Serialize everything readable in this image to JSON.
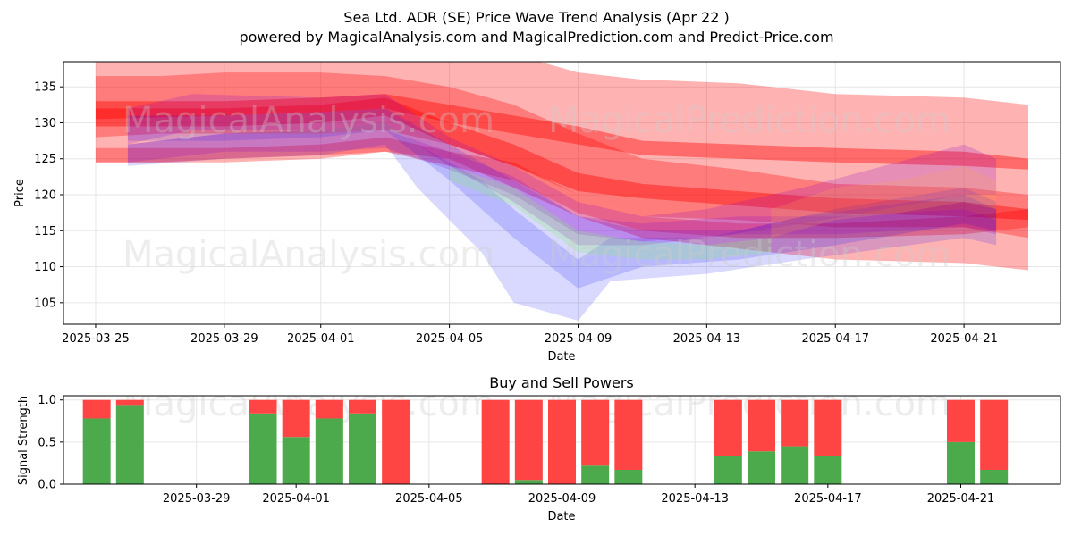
{
  "chart_data": [
    {
      "type": "area",
      "title": "Sea Ltd. ADR (SE) Price Wave Trend Analysis (Apr 22 )",
      "subtitle": "powered by MagicalAnalysis.com and MagicalPrediction.com and Predict-Price.com",
      "xlabel": "Date",
      "ylabel": "Price",
      "x_ticks": [
        "2025-03-25",
        "2025-03-29",
        "2025-04-01",
        "2025-04-05",
        "2025-04-09",
        "2025-04-13",
        "2025-04-17",
        "2025-04-21"
      ],
      "y_ticks": [
        105,
        110,
        115,
        120,
        125,
        130,
        135
      ],
      "xlim": [
        "2025-03-24",
        "2025-04-24"
      ],
      "ylim": [
        102,
        138.5
      ],
      "grid": true,
      "watermarks": [
        "MagicalAnalysis.com",
        "MagicalPrediction.com"
      ],
      "bands": [
        {
          "color": "#ff0000",
          "opacity": 0.3,
          "x": [
            "2025-03-25",
            "2025-03-27",
            "2025-03-29",
            "2025-04-01",
            "2025-04-03",
            "2025-04-05",
            "2025-04-07",
            "2025-04-09",
            "2025-04-11",
            "2025-04-14",
            "2025-04-17",
            "2025-04-21",
            "2025-04-23"
          ],
          "upper": [
            140,
            139.5,
            139.5,
            139.5,
            140,
            140,
            139.5,
            137,
            136,
            135.5,
            134,
            133.5,
            132.5
          ],
          "lower": [
            124.5,
            124.5,
            125,
            125.5,
            126,
            125,
            121,
            117,
            114,
            112.5,
            111,
            110.5,
            109.5
          ]
        },
        {
          "color": "#ff0000",
          "opacity": 0.3,
          "x": [
            "2025-03-25",
            "2025-03-27",
            "2025-03-29",
            "2025-04-01",
            "2025-04-03",
            "2025-04-05",
            "2025-04-07",
            "2025-04-09",
            "2025-04-11",
            "2025-04-14",
            "2025-04-17",
            "2025-04-21",
            "2025-04-23"
          ],
          "upper": [
            136.5,
            136.5,
            137,
            137,
            136.5,
            135,
            132.5,
            128.5,
            125,
            123.5,
            121.5,
            121,
            120
          ],
          "lower": [
            128,
            128.5,
            128.5,
            128.5,
            129,
            127,
            124,
            120,
            117,
            116.5,
            115.5,
            115.5,
            114
          ]
        },
        {
          "color": "#ff0000",
          "opacity": 0.4,
          "x": [
            "2025-03-25",
            "2025-03-29",
            "2025-04-01",
            "2025-04-03",
            "2025-04-05",
            "2025-04-07",
            "2025-04-09",
            "2025-04-11",
            "2025-04-14",
            "2025-04-17",
            "2025-04-21",
            "2025-04-23"
          ],
          "upper": [
            133,
            133,
            133.5,
            134,
            132.5,
            131,
            129.5,
            127.5,
            127,
            126.5,
            126,
            125
          ],
          "lower": [
            130.5,
            131,
            131.5,
            132,
            130,
            128.5,
            127,
            125.5,
            125,
            124.5,
            124,
            123.5
          ]
        },
        {
          "color": "#ff0000",
          "opacity": 0.4,
          "x": [
            "2025-03-25",
            "2025-03-29",
            "2025-04-01",
            "2025-04-03",
            "2025-04-05",
            "2025-04-07",
            "2025-04-09",
            "2025-04-11",
            "2025-04-14",
            "2025-04-17",
            "2025-04-21",
            "2025-04-23"
          ],
          "upper": [
            132,
            132,
            132.5,
            133.5,
            130,
            127,
            123,
            121.5,
            120.5,
            119.5,
            119,
            118
          ],
          "lower": [
            129.5,
            129.5,
            130,
            131,
            127,
            124,
            120.5,
            119.5,
            118.5,
            117.5,
            117,
            116.5
          ]
        },
        {
          "color": "#ff0000",
          "opacity": 0.3,
          "x": [
            "2025-03-25",
            "2025-03-29",
            "2025-04-01",
            "2025-04-03",
            "2025-04-05",
            "2025-04-07",
            "2025-04-09",
            "2025-04-11",
            "2025-04-14",
            "2025-04-17",
            "2025-04-21",
            "2025-04-23"
          ],
          "upper": [
            126.5,
            126.5,
            127,
            128,
            126,
            124.5,
            120,
            117,
            116,
            116,
            117,
            118
          ],
          "lower": [
            124.5,
            124.5,
            125,
            126,
            124,
            122,
            117.5,
            115,
            114,
            114,
            114.5,
            115.5
          ]
        },
        {
          "color": "#0000ff",
          "opacity": 0.15,
          "x": [
            "2025-03-26",
            "2025-03-29",
            "2025-04-01",
            "2025-04-03",
            "2025-04-04",
            "2025-04-06",
            "2025-04-07",
            "2025-04-09",
            "2025-04-10",
            "2025-04-13",
            "2025-04-16",
            "2025-04-21",
            "2025-04-22"
          ],
          "upper": [
            127,
            128.5,
            129,
            130,
            127,
            122,
            118,
            111,
            114,
            114,
            117,
            120,
            118
          ],
          "lower": [
            124,
            125,
            125.5,
            127,
            121,
            112,
            105,
            102.5,
            108,
            109,
            111,
            114,
            113
          ]
        },
        {
          "color": "#0000ff",
          "opacity": 0.15,
          "x": [
            "2025-03-26",
            "2025-03-29",
            "2025-04-01",
            "2025-04-03",
            "2025-04-05",
            "2025-04-07",
            "2025-04-09",
            "2025-04-11",
            "2025-04-14",
            "2025-04-17",
            "2025-04-21",
            "2025-04-22"
          ],
          "upper": [
            131,
            131,
            131.5,
            132,
            127,
            122,
            117,
            115,
            115,
            118,
            121,
            119
          ],
          "lower": [
            127.5,
            127.5,
            128,
            129,
            122,
            114,
            107,
            110,
            111,
            113,
            116,
            115
          ]
        },
        {
          "color": "#8800cc",
          "opacity": 0.2,
          "x": [
            "2025-03-26",
            "2025-03-28",
            "2025-04-01",
            "2025-04-03",
            "2025-04-05",
            "2025-04-07",
            "2025-04-09",
            "2025-04-11",
            "2025-04-13",
            "2025-04-16",
            "2025-04-21",
            "2025-04-22"
          ],
          "upper": [
            132,
            134,
            133.5,
            134,
            128,
            124,
            119,
            117,
            118,
            121,
            127,
            125
          ],
          "lower": [
            127,
            129,
            129,
            130,
            124,
            119,
            113,
            113,
            114,
            116,
            120,
            120
          ]
        },
        {
          "color": "#8800cc",
          "opacity": 0.2,
          "x": [
            "2025-03-26",
            "2025-03-29",
            "2025-04-01",
            "2025-04-03",
            "2025-04-05",
            "2025-04-07",
            "2025-04-09",
            "2025-04-11",
            "2025-04-14",
            "2025-04-17",
            "2025-04-21",
            "2025-04-22"
          ],
          "upper": [
            127,
            128.5,
            128.5,
            129,
            126,
            122.5,
            117,
            116,
            117,
            117,
            118,
            116.5
          ],
          "lower": [
            124.5,
            126,
            126,
            126.5,
            123.5,
            120,
            114.5,
            113.5,
            114.5,
            114.5,
            115.5,
            114.5
          ]
        },
        {
          "color": "#88ee66",
          "opacity": 0.25,
          "x": [
            "2025-04-05",
            "2025-04-07",
            "2025-04-09",
            "2025-04-11",
            "2025-04-13",
            "2025-04-15"
          ],
          "upper": [
            124,
            121,
            115,
            113.5,
            113,
            114
          ],
          "lower": [
            122,
            118.5,
            112,
            111,
            111,
            112
          ]
        },
        {
          "color": "#ffaa44",
          "opacity": 0.2,
          "x": [
            "2025-04-15",
            "2025-04-17",
            "2025-04-19",
            "2025-04-21",
            "2025-04-22"
          ],
          "upper": [
            118,
            121,
            122,
            124,
            122
          ],
          "lower": [
            114,
            116.5,
            117.5,
            119,
            118
          ]
        }
      ]
    },
    {
      "type": "bar",
      "title": "Buy and Sell Powers",
      "xlabel": "Date",
      "ylabel": "Signal Strength",
      "x_ticks": [
        "2025-03-29",
        "2025-04-01",
        "2025-04-05",
        "2025-04-09",
        "2025-04-13",
        "2025-04-17",
        "2025-04-21"
      ],
      "y_ticks": [
        0.0,
        0.5,
        1.0
      ],
      "xlim": [
        "2025-03-25",
        "2025-04-24"
      ],
      "ylim": [
        0,
        1.05
      ],
      "grid": true,
      "colors": {
        "buy": "#4caa4c",
        "sell": "#ff4444"
      },
      "series": [
        {
          "name": "buy",
          "x": [
            "2025-03-26",
            "2025-03-27",
            "2025-03-31",
            "2025-04-01",
            "2025-04-02",
            "2025-04-03",
            "2025-04-04",
            "2025-04-07",
            "2025-04-08",
            "2025-04-09",
            "2025-04-10",
            "2025-04-11",
            "2025-04-14",
            "2025-04-15",
            "2025-04-16",
            "2025-04-17",
            "2025-04-21",
            "2025-04-22"
          ],
          "values": [
            0.78,
            0.94,
            0.84,
            0.56,
            0.78,
            0.84,
            0.0,
            0.0,
            0.05,
            0.0,
            0.22,
            0.17,
            0.33,
            0.39,
            0.45,
            0.33,
            0.5,
            0.17
          ]
        },
        {
          "name": "sell",
          "x": [
            "2025-03-26",
            "2025-03-27",
            "2025-03-31",
            "2025-04-01",
            "2025-04-02",
            "2025-04-03",
            "2025-04-04",
            "2025-04-07",
            "2025-04-08",
            "2025-04-09",
            "2025-04-10",
            "2025-04-11",
            "2025-04-14",
            "2025-04-15",
            "2025-04-16",
            "2025-04-17",
            "2025-04-21",
            "2025-04-22"
          ],
          "values": [
            0.22,
            0.06,
            0.16,
            0.44,
            0.22,
            0.16,
            1.0,
            1.0,
            0.95,
            1.0,
            0.78,
            0.83,
            0.67,
            0.61,
            0.55,
            0.67,
            0.5,
            0.83
          ]
        }
      ]
    }
  ]
}
